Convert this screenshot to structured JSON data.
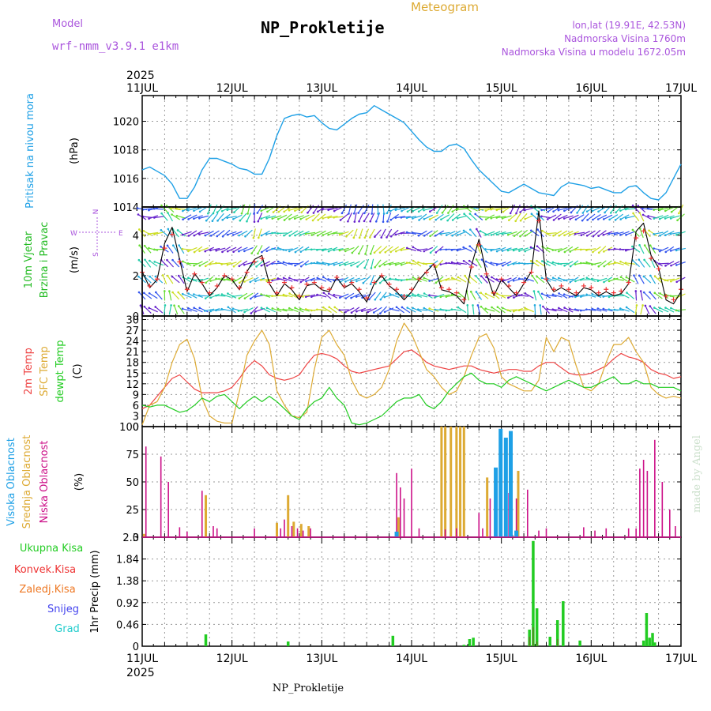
{
  "header": {
    "model_label": "Model",
    "model_name": "wrf-nmm_v3.9.1 e1km",
    "title": "NP_Prokletije",
    "subtitle": "Meteogram",
    "lonlat": "lon,lat (19.91E, 42.53N)",
    "elevation": "Nadmorska Visina 1760m",
    "model_elevation": "Nadmorska Visina u modelu 1672.05m"
  },
  "footer": {
    "station": "NP_Prokletije",
    "credit": "made by Angel"
  },
  "time_axis": {
    "year": "2025",
    "days": [
      "11JUL",
      "12JUL",
      "13JUL",
      "14JUL",
      "15JUL",
      "16JUL",
      "17JUL"
    ]
  },
  "colors": {
    "pressure": "#1ea0e6",
    "wind_label": "#22bb22",
    "wind_black": "#000000",
    "wind_red": "#ee3333",
    "temp2m": "#ee4444",
    "sfc": "#ddaa33",
    "dewpt": "#22cc22",
    "cloud_high": "#1ea0e6",
    "cloud_mid": "#ddaa33",
    "cloud_low": "#cc1188",
    "precip_total": "#22cc22",
    "precip_conv": "#ee3333",
    "precip_frozen": "#ee7722",
    "precip_snow": "#4444ee",
    "precip_hail": "#22cccc",
    "text_purple": "#aa55dd",
    "text_orange": "#ddaa33"
  },
  "chart_data": [
    {
      "id": "pressure",
      "type": "line",
      "ylabel": "Pritisak na nivou mora",
      "unit": "(hPa)",
      "ylim": [
        1014,
        1021.8
      ],
      "yticks": [
        1014,
        1016,
        1018,
        1020
      ],
      "grid": true,
      "x": [
        0,
        2,
        4,
        6,
        8,
        10,
        12,
        14,
        16,
        18,
        20,
        22,
        24,
        26,
        28,
        30,
        32,
        34,
        36,
        38,
        40,
        42,
        44,
        46,
        48,
        50,
        52,
        54,
        56,
        58,
        60,
        62,
        64,
        66,
        68,
        70,
        72,
        74,
        76,
        78,
        80,
        82,
        84,
        86,
        88,
        90,
        92,
        94,
        96,
        98,
        100,
        102,
        104,
        106,
        108,
        110,
        112,
        114,
        116,
        118,
        120,
        122,
        124,
        126,
        128,
        130,
        132,
        134,
        136,
        138,
        140,
        142,
        144
      ],
      "values": [
        1016.6,
        1016.8,
        1016.5,
        1016.2,
        1015.6,
        1014.6,
        1014.6,
        1015.4,
        1016.6,
        1017.4,
        1017.4,
        1017.2,
        1017.0,
        1016.7,
        1016.6,
        1016.3,
        1016.3,
        1017.4,
        1019.0,
        1020.2,
        1020.4,
        1020.5,
        1020.3,
        1020.4,
        1019.9,
        1019.5,
        1019.4,
        1019.8,
        1020.2,
        1020.5,
        1020.6,
        1021.1,
        1020.8,
        1020.5,
        1020.2,
        1019.9,
        1019.3,
        1018.7,
        1018.2,
        1017.9,
        1017.9,
        1018.3,
        1018.4,
        1018.1,
        1017.3,
        1016.6,
        1016.1,
        1015.6,
        1015.1,
        1015.0,
        1015.3,
        1015.6,
        1015.3,
        1015.0,
        1014.9,
        1014.8,
        1015.4,
        1015.7,
        1015.6,
        1015.5,
        1015.3,
        1015.4,
        1015.2,
        1015.0,
        1015.0,
        1015.4,
        1015.5,
        1015.0,
        1014.6,
        1014.5,
        1015.0,
        1016.0,
        1017.0
      ]
    },
    {
      "id": "wind",
      "type": "line",
      "ylabel": "10m Vjetar Brzina i Pravac",
      "unit": "(m/s)",
      "compass": [
        "W",
        "N",
        "E",
        "S"
      ],
      "ylim": [
        0,
        5.4
      ],
      "yticks": [
        0,
        2,
        4
      ],
      "grid": true,
      "x": [
        0,
        2,
        4,
        6,
        8,
        10,
        12,
        14,
        16,
        18,
        20,
        22,
        24,
        26,
        28,
        30,
        32,
        34,
        36,
        38,
        40,
        42,
        44,
        46,
        48,
        50,
        52,
        54,
        56,
        58,
        60,
        62,
        64,
        66,
        68,
        70,
        72,
        74,
        76,
        78,
        80,
        82,
        84,
        86,
        88,
        90,
        92,
        94,
        96,
        98,
        100,
        102,
        104,
        106,
        108,
        110,
        112,
        114,
        116,
        118,
        120,
        122,
        124,
        126,
        128,
        130,
        132,
        134,
        136,
        138,
        140,
        142,
        144
      ],
      "speed": [
        2.2,
        1.4,
        1.8,
        3.6,
        4.4,
        2.8,
        1.2,
        2.1,
        1.6,
        1.0,
        1.4,
        2.0,
        1.8,
        1.3,
        2.2,
        2.8,
        3.0,
        1.6,
        1.0,
        1.6,
        1.3,
        0.8,
        1.5,
        1.6,
        1.3,
        1.2,
        1.9,
        1.4,
        1.6,
        1.2,
        0.7,
        1.6,
        2.0,
        1.5,
        1.2,
        0.8,
        1.2,
        1.8,
        2.2,
        2.6,
        1.3,
        1.2,
        1.0,
        0.6,
        2.5,
        3.8,
        2.1,
        1.0,
        1.8,
        1.4,
        1.0,
        1.6,
        2.2,
        5.2,
        1.8,
        1.2,
        1.4,
        1.2,
        1.0,
        1.4,
        1.3,
        1.0,
        1.2,
        1.0,
        1.1,
        1.6,
        4.2,
        4.6,
        3.0,
        2.4,
        0.8,
        0.6,
        1.2
      ],
      "dir": [
        200,
        210,
        230,
        190,
        185,
        200,
        240,
        250,
        260,
        280,
        270,
        260,
        250,
        270,
        280,
        300,
        290,
        260,
        250,
        240,
        250,
        260,
        270,
        260,
        250,
        240,
        250,
        270,
        280,
        290,
        300,
        310,
        300,
        280,
        260,
        250,
        240,
        230,
        250,
        270,
        280,
        260,
        250,
        240,
        200,
        190,
        210,
        240,
        250,
        260,
        270,
        260,
        250,
        200,
        220,
        240,
        250,
        260,
        270,
        260,
        250,
        260,
        270,
        260,
        250,
        240,
        190,
        180,
        200,
        230,
        250,
        260,
        270
      ]
    },
    {
      "id": "temperature",
      "type": "line",
      "ylabel": "2m Temp SFC Temp dewpt Temp",
      "unit": "(C)",
      "ylim": [
        0,
        31
      ],
      "yticks": [
        0,
        3,
        6,
        9,
        12,
        15,
        18,
        21,
        24,
        27,
        30
      ],
      "grid": true,
      "series": [
        {
          "name": "2m Temp",
          "x": [
            0,
            2,
            4,
            6,
            8,
            10,
            12,
            14,
            16,
            18,
            20,
            22,
            24,
            26,
            28,
            30,
            32,
            34,
            36,
            38,
            40,
            42,
            44,
            46,
            48,
            50,
            52,
            54,
            56,
            58,
            60,
            62,
            64,
            66,
            68,
            70,
            72,
            74,
            76,
            78,
            80,
            82,
            84,
            86,
            88,
            90,
            92,
            94,
            96,
            98,
            100,
            102,
            104,
            106,
            108,
            110,
            112,
            114,
            116,
            118,
            120,
            122,
            124,
            126,
            128,
            130,
            132,
            134,
            136,
            138,
            140,
            142,
            144
          ],
          "values": [
            5,
            6,
            8.5,
            11,
            13.5,
            14.5,
            12.5,
            10.5,
            9.5,
            9.5,
            9.5,
            10,
            11,
            13.5,
            16.5,
            18.5,
            17,
            14.5,
            13.5,
            13,
            13.5,
            14.5,
            17.5,
            20,
            20.5,
            20,
            19,
            17,
            15.5,
            15,
            15.5,
            16,
            16.5,
            17,
            19,
            21,
            21.5,
            20,
            18,
            17,
            16.5,
            16,
            16.5,
            17,
            17,
            16,
            15.5,
            15,
            15.5,
            16,
            16,
            15.5,
            15.5,
            17,
            18,
            18,
            16.5,
            15,
            14.5,
            14.5,
            15,
            16,
            17,
            19,
            20.5,
            19.5,
            19,
            18,
            16,
            15,
            14.5,
            13.5,
            14
          ]
        },
        {
          "name": "SFC Temp",
          "x": [
            0,
            2,
            4,
            6,
            8,
            10,
            12,
            14,
            16,
            18,
            20,
            22,
            24,
            26,
            28,
            30,
            32,
            34,
            36,
            38,
            40,
            42,
            44,
            46,
            48,
            50,
            52,
            54,
            56,
            58,
            60,
            62,
            64,
            66,
            68,
            70,
            72,
            74,
            76,
            78,
            80,
            82,
            84,
            86,
            88,
            90,
            92,
            94,
            96,
            98,
            100,
            102,
            104,
            106,
            108,
            110,
            112,
            114,
            116,
            118,
            120,
            122,
            124,
            126,
            128,
            130,
            132,
            134,
            136,
            138,
            140,
            142,
            144
          ],
          "values": [
            0.5,
            6,
            7,
            11,
            18,
            23,
            24.5,
            19,
            8,
            3,
            1.5,
            1,
            1,
            10,
            20,
            24,
            27,
            23,
            10,
            6,
            3,
            2.5,
            4,
            16,
            25,
            27,
            23,
            20,
            13,
            9,
            8,
            9,
            11,
            16,
            24,
            29,
            26,
            21,
            16,
            14,
            11,
            9,
            10,
            14,
            20,
            25,
            26,
            22,
            14,
            12,
            11,
            10,
            10,
            13,
            25,
            21,
            25,
            24,
            17,
            11,
            10,
            12,
            18,
            23,
            23,
            25,
            21,
            18,
            11,
            9,
            8,
            8.5,
            8
          ]
        },
        {
          "name": "dewpt Temp",
          "x": [
            0,
            2,
            4,
            6,
            8,
            10,
            12,
            14,
            16,
            18,
            20,
            22,
            24,
            26,
            28,
            30,
            32,
            34,
            36,
            38,
            40,
            42,
            44,
            46,
            48,
            50,
            52,
            54,
            56,
            58,
            60,
            62,
            64,
            66,
            68,
            70,
            72,
            74,
            76,
            78,
            80,
            82,
            84,
            86,
            88,
            90,
            92,
            94,
            96,
            98,
            100,
            102,
            104,
            106,
            108,
            110,
            112,
            114,
            116,
            118,
            120,
            122,
            124,
            126,
            128,
            130,
            132,
            134,
            136,
            138,
            140,
            142,
            144
          ],
          "values": [
            6,
            5.5,
            6,
            6,
            5,
            4,
            4.5,
            6,
            8,
            7,
            8.5,
            9,
            7,
            5,
            7,
            8.5,
            7,
            8.5,
            7,
            5,
            3,
            2,
            5,
            7,
            8,
            11,
            8,
            6,
            1,
            0.5,
            1,
            2,
            3,
            5,
            7,
            8,
            8,
            9,
            6,
            5,
            7,
            10,
            12,
            14,
            15,
            13,
            12,
            12,
            11,
            13,
            14,
            13,
            12,
            11,
            10,
            11,
            12,
            13,
            12,
            11,
            11,
            12,
            13,
            14,
            12,
            12,
            13,
            12,
            12,
            11,
            11,
            11,
            10
          ]
        }
      ]
    },
    {
      "id": "clouds",
      "type": "bar",
      "ylabel": "Visoka Oblacnost Srednja Oblacnost Niska Oblacnost",
      "unit": "(%)",
      "ylim": [
        0,
        100
      ],
      "yticks": [
        0,
        25,
        50,
        75,
        100
      ],
      "grid": true,
      "series": [
        {
          "name": "Visoka Oblacnost",
          "x": [
            68,
            94.5,
            95.8,
            97.2,
            98.5,
            100
          ],
          "values": [
            5,
            63,
            98,
            90,
            96,
            6
          ]
        },
        {
          "name": "Srednja Oblacnost",
          "x": [
            0.5,
            17,
            36,
            39,
            40.5,
            42.5,
            44.5,
            68.5,
            80,
            81,
            82.5,
            84,
            85,
            86,
            92.2,
            100.5
          ],
          "values": [
            3,
            38,
            13,
            38,
            14,
            12,
            10,
            18,
            100,
            100,
            100,
            100,
            100,
            100,
            54,
            60
          ]
        },
        {
          "name": "Niska Oblacnost",
          "x": [
            1,
            5,
            7,
            10,
            12,
            16,
            19,
            20,
            30,
            37,
            38,
            40,
            41.5,
            43,
            45,
            68,
            69,
            70,
            72,
            74,
            81,
            84,
            90,
            91,
            93,
            96,
            98,
            100,
            103,
            106,
            108,
            118,
            121,
            124,
            130,
            132,
            133,
            134,
            135,
            137,
            139,
            141,
            142.5
          ],
          "values": [
            82,
            73,
            50,
            9,
            5,
            42,
            10,
            8,
            8,
            8,
            16,
            10,
            8,
            6,
            8,
            58,
            45,
            35,
            62,
            8,
            7,
            8,
            22,
            8,
            35,
            65,
            40,
            35,
            43,
            6,
            8,
            9,
            6,
            8,
            8,
            8,
            62,
            70,
            60,
            88,
            50,
            25,
            10
          ]
        }
      ]
    },
    {
      "id": "precip",
      "type": "bar",
      "ylabel": "1hr Precip",
      "unit": "(mm)",
      "ylim": [
        0,
        2.3
      ],
      "yticks": [
        0,
        0.46,
        0.92,
        1.38,
        1.84,
        2.3
      ],
      "grid": true,
      "legend": [
        "Ukupna Kisa",
        "Konvek.Kisa",
        "Zaledj.Kisa",
        "Snijeg",
        "Grad"
      ],
      "series": [
        {
          "name": "Ukupna Kisa",
          "x": [
            17,
            39,
            67,
            86,
            87.5,
            88.5,
            103.5,
            104.5,
            105.5,
            109,
            111,
            112.5,
            117,
            134,
            134.8,
            135.6,
            136.4,
            137
          ],
          "values": [
            0.25,
            0.1,
            0.22,
            0.03,
            0.15,
            0.18,
            0.35,
            2.22,
            0.8,
            0.2,
            0.55,
            0.95,
            0.12,
            0.12,
            0.7,
            0.18,
            0.28,
            0.08
          ]
        },
        {
          "name": "Konvek.Kisa",
          "x": [
            103.5,
            104.5,
            105.5,
            111
          ],
          "values": [
            0.2,
            0.4,
            0.1,
            0.15
          ]
        },
        {
          "name": "Zaledj.Kisa",
          "x": [],
          "values": []
        },
        {
          "name": "Snijeg",
          "x": [],
          "values": []
        },
        {
          "name": "Grad",
          "x": [],
          "values": []
        }
      ]
    }
  ]
}
